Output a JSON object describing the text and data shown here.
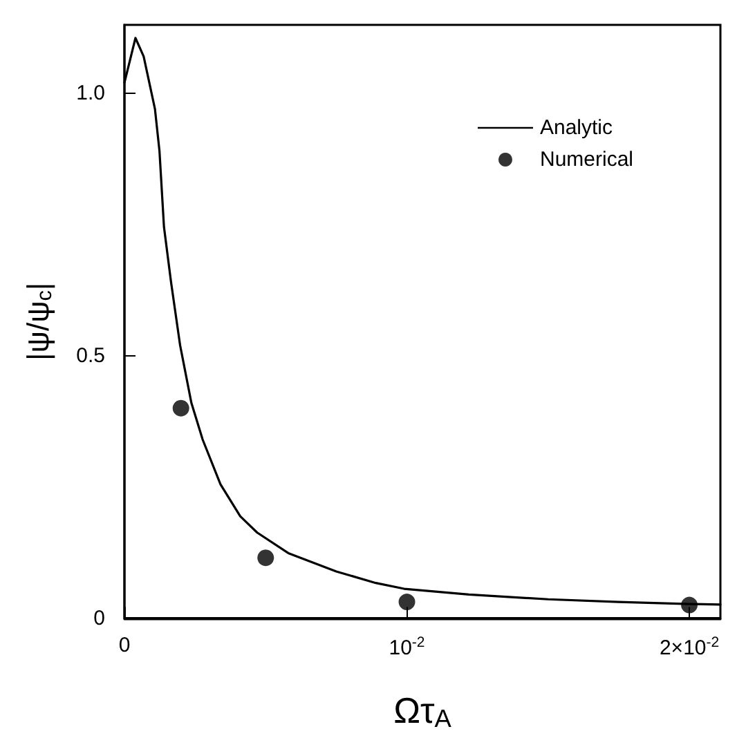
{
  "chart_data": {
    "type": "line",
    "xlabel": "Ωτ$_{A}$",
    "ylabel": "|ψ/ψ$_{c}$|",
    "xlim": [
      0,
      0.0211
    ],
    "ylim": [
      0,
      1.13
    ],
    "xticks": [
      {
        "value": 0,
        "label": "0"
      },
      {
        "value": 0.01,
        "label": "10$^{-2}$"
      },
      {
        "value": 0.02,
        "label": "2×10$^{-2}$"
      }
    ],
    "yticks": [
      0,
      0.5,
      {
        "value": 1,
        "label": "1.0"
      }
    ],
    "legend": "top right",
    "grid": false,
    "series": [
      {
        "name": "Analytic",
        "type": "line",
        "color": "#000000",
        "marker": "none",
        "line_style": "solid",
        "x": [
          0,
          0.00039,
          0.00068,
          0.00108,
          0.00124,
          0.0014,
          0.00165,
          0.00197,
          0.00237,
          0.00277,
          0.0034,
          0.0041,
          0.0047,
          0.0058,
          0.0075,
          0.0089,
          0.0099,
          0.0122,
          0.015,
          0.0175,
          0.02,
          0.0211
        ],
        "values": [
          1.02,
          1.105,
          1.07,
          0.97,
          0.89,
          0.745,
          0.64,
          0.52,
          0.41,
          0.34,
          0.255,
          0.194,
          0.163,
          0.124,
          0.089,
          0.067,
          0.056,
          0.045,
          0.036,
          0.031,
          0.027,
          0.026
        ]
      },
      {
        "name": "Numerical",
        "type": "scatter",
        "color": "#000000",
        "marker": "circle",
        "x": [
          0.002,
          0.005,
          0.01,
          0.02
        ],
        "values": [
          0.4,
          0.115,
          0.031,
          0.025
        ]
      }
    ]
  }
}
